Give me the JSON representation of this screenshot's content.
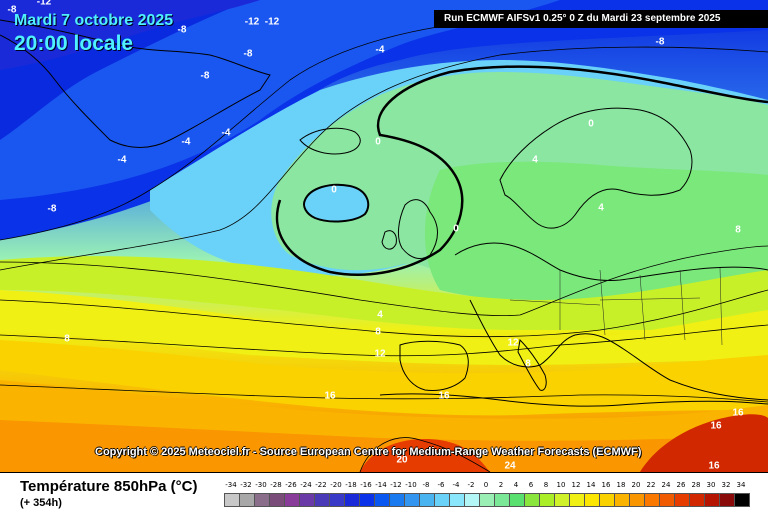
{
  "header": {
    "date": "Mardi 7 octobre 2025",
    "time": "20:00 locale",
    "run": "Run ECMWF AIFSv1 0.25° 0 Z du Mardi 23 septembre 2025"
  },
  "copyright": "Copyright © 2025 Meteociel.fr - Source European Centre for Medium-Range Weather Forecasts (ECMWF)",
  "footer": {
    "field": "Température 850hPa (°C)",
    "lead": "(+ 354h)"
  },
  "colors": {
    "land_line": "#000000",
    "zero_isotherm": "#000000"
  },
  "isotherm_labels": [
    {
      "text": "-8",
      "tone": "w"
    },
    {
      "text": "-12",
      "tone": "w"
    },
    {
      "text": "-8",
      "tone": "w"
    },
    {
      "text": "-12",
      "tone": "w"
    },
    {
      "text": "-12",
      "tone": "w"
    },
    {
      "text": "-8",
      "tone": "w"
    },
    {
      "text": "-4",
      "tone": "w"
    },
    {
      "text": "-8",
      "tone": "w"
    },
    {
      "text": "-8",
      "tone": "w"
    },
    {
      "text": "-4",
      "tone": "w"
    },
    {
      "text": "-4",
      "tone": "w"
    },
    {
      "text": "-4",
      "tone": "w"
    },
    {
      "text": "-8",
      "tone": "w"
    },
    {
      "text": "0",
      "tone": "w"
    },
    {
      "text": "0",
      "tone": "w"
    },
    {
      "text": "0",
      "tone": "w"
    },
    {
      "text": "0",
      "tone": "w"
    },
    {
      "text": "4",
      "tone": "w"
    },
    {
      "text": "4",
      "tone": "w"
    },
    {
      "text": "8",
      "tone": "w"
    },
    {
      "text": "4",
      "tone": "w"
    },
    {
      "text": "8",
      "tone": "w"
    },
    {
      "text": "8",
      "tone": "w"
    },
    {
      "text": "12",
      "tone": "w"
    },
    {
      "text": "12",
      "tone": "w"
    },
    {
      "text": "8",
      "tone": "w"
    },
    {
      "text": "16",
      "tone": "w"
    },
    {
      "text": "16",
      "tone": "w"
    },
    {
      "text": "16",
      "tone": "w"
    },
    {
      "text": "16",
      "tone": "w"
    },
    {
      "text": "20",
      "tone": "w"
    },
    {
      "text": "24",
      "tone": "w"
    },
    {
      "text": "16",
      "tone": "w"
    }
  ],
  "legend": {
    "ticks": [
      "-34",
      "-32",
      "-30",
      "-28",
      "-26",
      "-24",
      "-22",
      "-20",
      "-18",
      "-16",
      "-14",
      "-12",
      "-10",
      "-8",
      "-6",
      "-4",
      "-2",
      "0",
      "2",
      "4",
      "6",
      "8",
      "10",
      "12",
      "14",
      "16",
      "18",
      "20",
      "22",
      "24",
      "26",
      "28",
      "30",
      "32",
      "34"
    ],
    "colors": [
      "#c8c8c8",
      "#a8a8a8",
      "#8a6e8a",
      "#7a4c7a",
      "#8a3c9a",
      "#6a3aa8",
      "#4a3ab8",
      "#3a3ac8",
      "#1a2ad8",
      "#0a32e8",
      "#0a56f0",
      "#1a7af0",
      "#3296f0",
      "#4ab4f0",
      "#6ad2f8",
      "#8ae6fa",
      "#b4f6f6",
      "#9af0b4",
      "#7ae896",
      "#5ae06e",
      "#8ae63c",
      "#aaee28",
      "#d0f228",
      "#f0f014",
      "#fae600",
      "#fad200",
      "#fab400",
      "#fa9600",
      "#fa7800",
      "#f05a00",
      "#e63c00",
      "#d22800",
      "#b41400",
      "#8a0a0a",
      "#000000"
    ]
  }
}
